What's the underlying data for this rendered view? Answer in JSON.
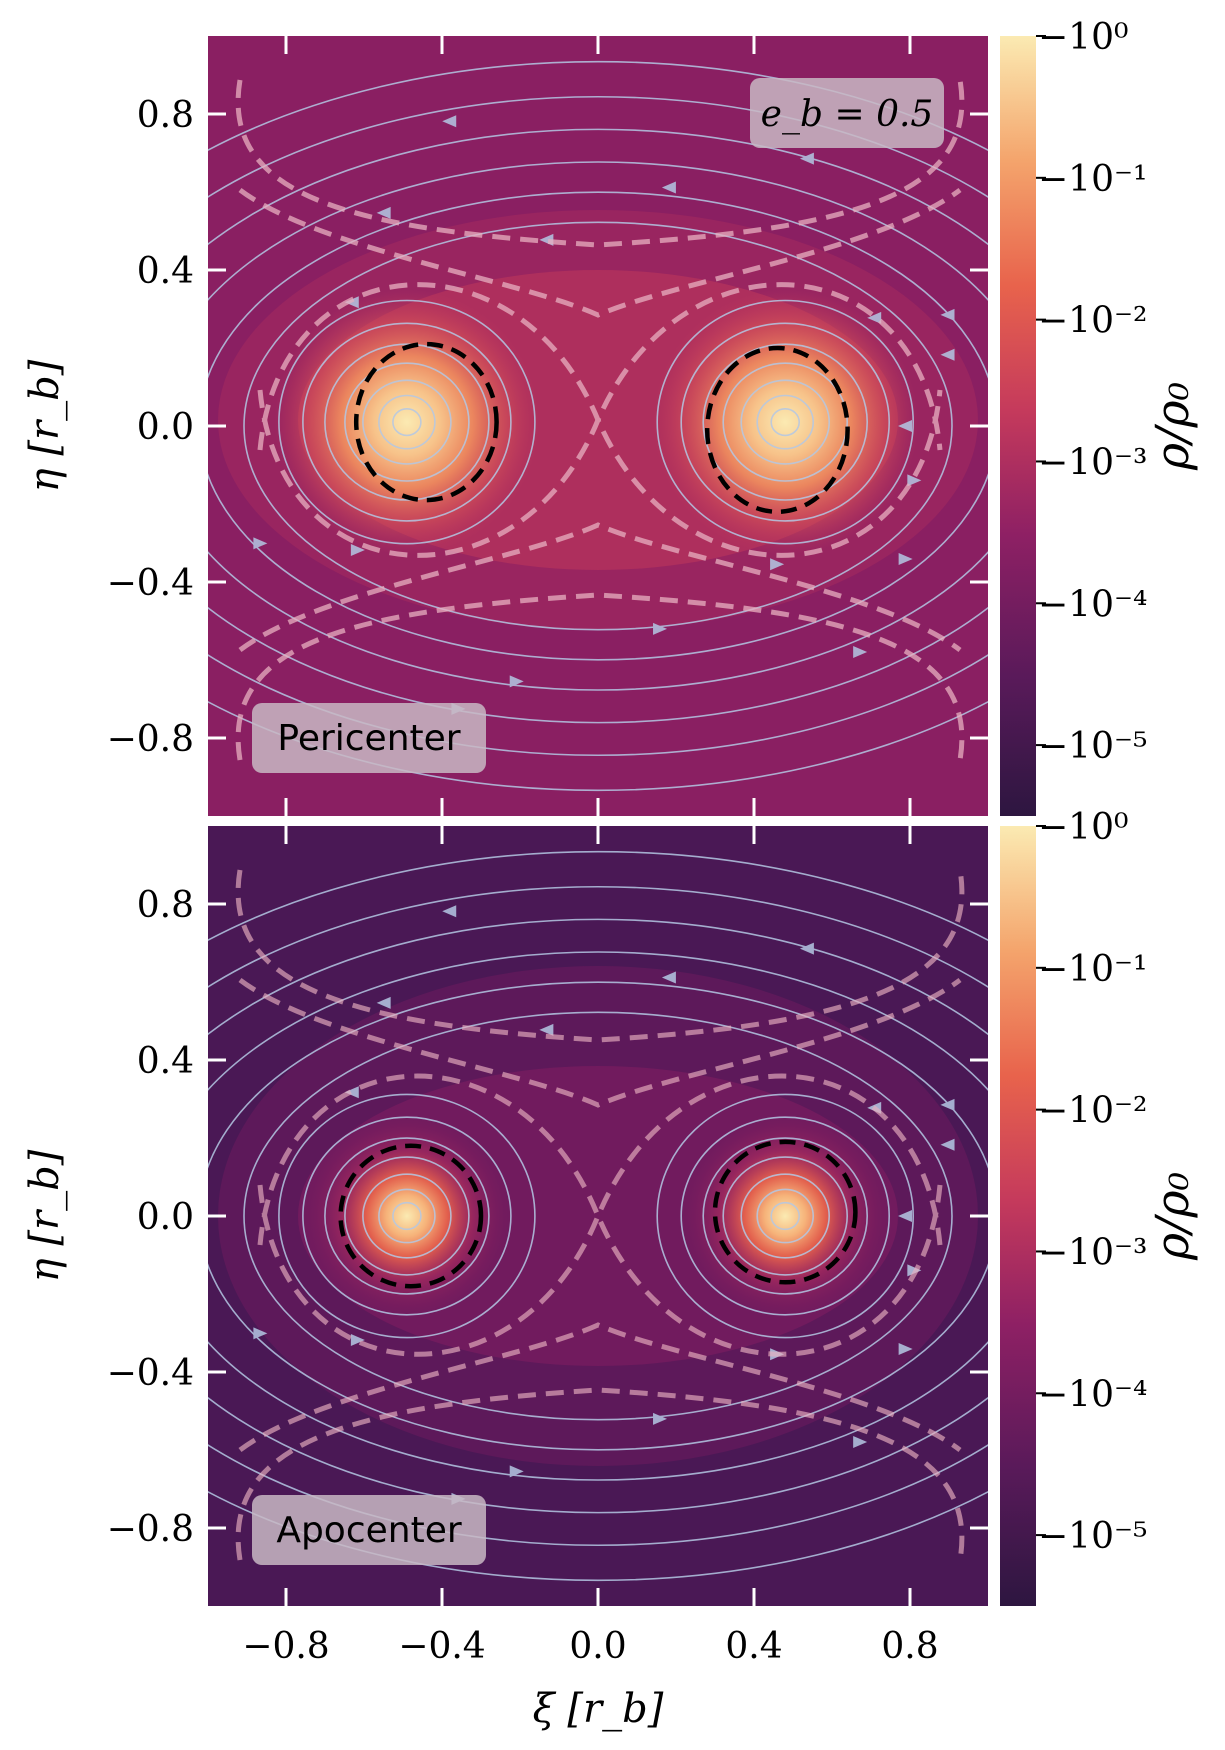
{
  "chart_data": [
    {
      "type": "heatmap",
      "panel": "top",
      "label": "Pericenter",
      "annotation": "e_b = 0.5",
      "xlim": [
        -1.0,
        1.0
      ],
      "ylim": [
        -1.0,
        1.0
      ],
      "xticks": [
        -0.8,
        -0.4,
        0.0,
        0.4,
        0.8
      ],
      "yticks": [
        0.8,
        0.4,
        0.0,
        -0.4,
        -0.8
      ],
      "ytick_labels": [
        "0.8",
        "0.4",
        "0.0",
        "−0.4",
        "−0.8"
      ],
      "ylabel": "η [r_b]",
      "colorbar": {
        "label": "ρ/ρ₀",
        "scale": "log",
        "range": [
          -5.5,
          0
        ],
        "ticks": [
          0,
          -1,
          -2,
          -3,
          -4,
          -5
        ],
        "tick_labels": [
          "−10⁰",
          "−10⁻¹",
          "−10⁻²",
          "−10⁻³",
          "−10⁻⁴",
          "−10⁻⁵"
        ]
      },
      "peaks": [
        {
          "xi": -0.49,
          "eta": 0.01,
          "log_rho": 0.0
        },
        {
          "xi": 0.48,
          "eta": 0.01,
          "log_rho": 0.0
        }
      ],
      "roche_lobes": [
        {
          "xi": -0.44,
          "eta": 0.01,
          "rx": 0.18,
          "ry": 0.2
        },
        {
          "xi": 0.46,
          "eta": -0.01,
          "rx": 0.18,
          "ry": 0.21
        }
      ]
    },
    {
      "type": "heatmap",
      "panel": "bottom",
      "label": "Apocenter",
      "xlim": [
        -1.0,
        1.0
      ],
      "ylim": [
        -1.0,
        1.0
      ],
      "xticks": [
        -0.8,
        -0.4,
        0.0,
        0.4,
        0.8
      ],
      "xtick_labels": [
        "−0.8",
        "−0.4",
        "0.0",
        "0.4",
        "0.8"
      ],
      "yticks": [
        0.8,
        0.4,
        0.0,
        -0.4,
        -0.8
      ],
      "ytick_labels": [
        "0.8",
        "0.4",
        "0.0",
        "−0.4",
        "−0.8"
      ],
      "xlabel": "ξ [r_b]",
      "ylabel": "η [r_b]",
      "colorbar": {
        "label": "ρ/ρ₀",
        "scale": "log",
        "range": [
          -5.5,
          0
        ],
        "ticks": [
          0,
          -1,
          -2,
          -3,
          -4,
          -5
        ],
        "tick_labels": [
          "−10⁰",
          "−10⁻¹",
          "−10⁻²",
          "−10⁻³",
          "−10⁻⁴",
          "−10⁻⁵"
        ]
      },
      "peaks": [
        {
          "xi": -0.49,
          "eta": 0.0,
          "log_rho": 0.0
        },
        {
          "xi": 0.48,
          "eta": 0.0,
          "log_rho": 0.0
        }
      ],
      "roche_lobes": [
        {
          "xi": -0.48,
          "eta": 0.0,
          "rx": 0.18,
          "ry": 0.18
        },
        {
          "xi": 0.48,
          "eta": 0.01,
          "rx": 0.18,
          "ry": 0.18
        }
      ]
    }
  ],
  "colors": {
    "streamline": "#b4c8e4",
    "contour_dashed": "#e8b0c0",
    "roche_lobe": "#000000",
    "label_box": "#c8b8c4"
  }
}
